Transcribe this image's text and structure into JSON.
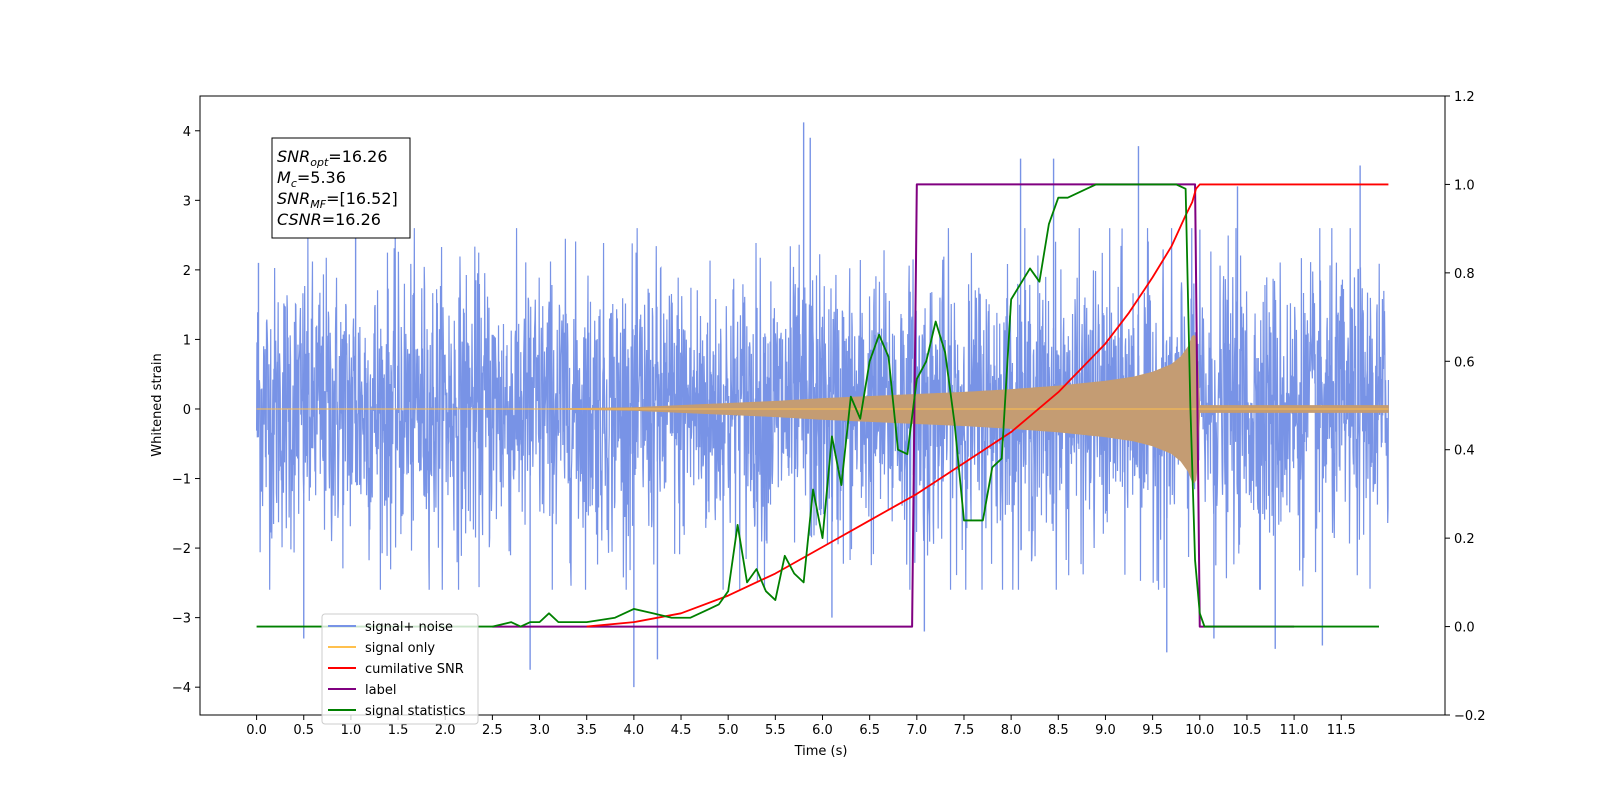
{
  "chart_data": {
    "type": "line",
    "xlabel": "Time (s)",
    "ylabel": "Whitened strain",
    "xlim": [
      -0.6,
      12.6
    ],
    "ylim": [
      -4.4,
      4.5
    ],
    "ylim_right": [
      -0.2,
      1.2
    ],
    "x_ticks": [
      "0.0",
      "0.5",
      "1.0",
      "1.5",
      "2.0",
      "2.5",
      "3.0",
      "3.5",
      "4.0",
      "4.5",
      "5.0",
      "5.5",
      "6.0",
      "6.5",
      "7.0",
      "7.5",
      "8.0",
      "8.5",
      "9.0",
      "9.5",
      "10.0",
      "10.5",
      "11.0",
      "11.5"
    ],
    "y_ticks_left": [
      "4",
      "3",
      "2",
      "1",
      "0",
      "−1",
      "−2",
      "−3",
      "−4"
    ],
    "y_ticks_right": [
      "1.2",
      "1.0",
      "0.8",
      "0.6",
      "0.4",
      "0.2",
      "0.0",
      "−0.2"
    ],
    "grid": false,
    "legend_position": "lower-left",
    "annotation": {
      "lines": [
        {
          "main": "SNR",
          "sub": "opt",
          "value": "=16.26"
        },
        {
          "main": "M",
          "sub": "c",
          "value": "=5.36"
        },
        {
          "main": "SNR",
          "sub": "MF",
          "value": "=[16.52]"
        },
        {
          "main": "CSNR",
          "sub": "",
          "value": "=16.26"
        }
      ]
    },
    "series": [
      {
        "name": "signal+ noise",
        "axis": "left",
        "color": "#7893e6",
        "style": "noise-band",
        "x_range": [
          0.0,
          12.0
        ],
        "envelope_std": 1.0,
        "peak_values": [
          [
            0.02,
            2.1
          ],
          [
            0.5,
            -3.3
          ],
          [
            1.05,
            3.1
          ],
          [
            2.9,
            -3.75
          ],
          [
            4.0,
            -4.0
          ],
          [
            4.25,
            -3.6
          ],
          [
            5.8,
            4.12
          ],
          [
            5.87,
            3.9
          ],
          [
            6.1,
            -3.0
          ],
          [
            7.08,
            -3.2
          ],
          [
            8.1,
            3.6
          ],
          [
            8.45,
            3.6
          ],
          [
            9.35,
            3.78
          ],
          [
            9.65,
            -3.5
          ],
          [
            10.15,
            -3.3
          ],
          [
            10.4,
            3.2
          ],
          [
            10.8,
            -3.45
          ],
          [
            11.3,
            -3.4
          ],
          [
            11.7,
            3.5
          ]
        ]
      },
      {
        "name": "signal only",
        "axis": "left",
        "color": "#c49c73",
        "legend_color": "#ffc04d",
        "style": "chirp-envelope",
        "x": [
          0.0,
          1.0,
          2.0,
          3.0,
          4.0,
          4.5,
          5.0,
          5.5,
          6.0,
          6.5,
          7.0,
          7.5,
          8.0,
          8.5,
          9.0,
          9.3,
          9.5,
          9.7,
          9.8,
          9.88,
          9.93,
          9.97,
          10.0,
          12.0
        ],
        "amplitude": [
          0.0,
          0.0,
          0.0,
          0.0,
          0.02,
          0.05,
          0.08,
          0.11,
          0.15,
          0.18,
          0.21,
          0.24,
          0.28,
          0.33,
          0.4,
          0.46,
          0.53,
          0.64,
          0.75,
          0.9,
          1.08,
          1.0,
          0.05,
          0.05
        ]
      },
      {
        "name": "cumilative SNR",
        "axis": "right",
        "color": "#ff0000",
        "x": [
          3.5,
          4.0,
          4.5,
          5.0,
          5.5,
          6.0,
          6.5,
          7.0,
          7.5,
          8.0,
          8.5,
          9.0,
          9.25,
          9.5,
          9.7,
          9.85,
          9.92,
          9.96,
          10.0,
          12.0
        ],
        "values": [
          0.0,
          0.01,
          0.03,
          0.07,
          0.12,
          0.18,
          0.24,
          0.3,
          0.37,
          0.44,
          0.53,
          0.64,
          0.71,
          0.79,
          0.86,
          0.93,
          0.96,
          0.99,
          1.0,
          1.0
        ]
      },
      {
        "name": "label",
        "axis": "right",
        "color": "#800080",
        "x": [
          2.5,
          6.95,
          7.0,
          9.95,
          10.0,
          11.0
        ],
        "values": [
          0.0,
          0.0,
          1.0,
          1.0,
          0.0,
          0.0
        ]
      },
      {
        "name": "signal statistics",
        "axis": "right",
        "color": "#008000",
        "x": [
          0.0,
          2.5,
          2.7,
          2.8,
          2.9,
          3.0,
          3.1,
          3.2,
          3.3,
          3.5,
          3.8,
          4.0,
          4.2,
          4.4,
          4.6,
          4.8,
          4.9,
          5.0,
          5.1,
          5.2,
          5.3,
          5.4,
          5.5,
          5.6,
          5.7,
          5.8,
          5.9,
          6.0,
          6.1,
          6.2,
          6.3,
          6.4,
          6.5,
          6.6,
          6.7,
          6.8,
          6.9,
          7.0,
          7.1,
          7.2,
          7.3,
          7.4,
          7.5,
          7.6,
          7.7,
          7.8,
          7.9,
          8.0,
          8.2,
          8.3,
          8.4,
          8.5,
          8.6,
          8.8,
          8.9,
          9.0,
          9.5,
          9.75,
          9.85,
          9.9,
          9.95,
          10.0,
          10.05,
          11.9
        ],
        "values": [
          0.0,
          0.0,
          0.01,
          0.0,
          0.01,
          0.01,
          0.03,
          0.01,
          0.01,
          0.01,
          0.02,
          0.04,
          0.03,
          0.02,
          0.02,
          0.04,
          0.05,
          0.08,
          0.23,
          0.1,
          0.13,
          0.08,
          0.06,
          0.16,
          0.12,
          0.1,
          0.31,
          0.2,
          0.43,
          0.32,
          0.52,
          0.47,
          0.6,
          0.66,
          0.61,
          0.4,
          0.39,
          0.56,
          0.6,
          0.69,
          0.62,
          0.46,
          0.24,
          0.24,
          0.24,
          0.36,
          0.38,
          0.74,
          0.81,
          0.78,
          0.91,
          0.97,
          0.97,
          0.99,
          1.0,
          1.0,
          1.0,
          1.0,
          0.99,
          0.5,
          0.15,
          0.03,
          0.0,
          0.0
        ]
      }
    ]
  }
}
